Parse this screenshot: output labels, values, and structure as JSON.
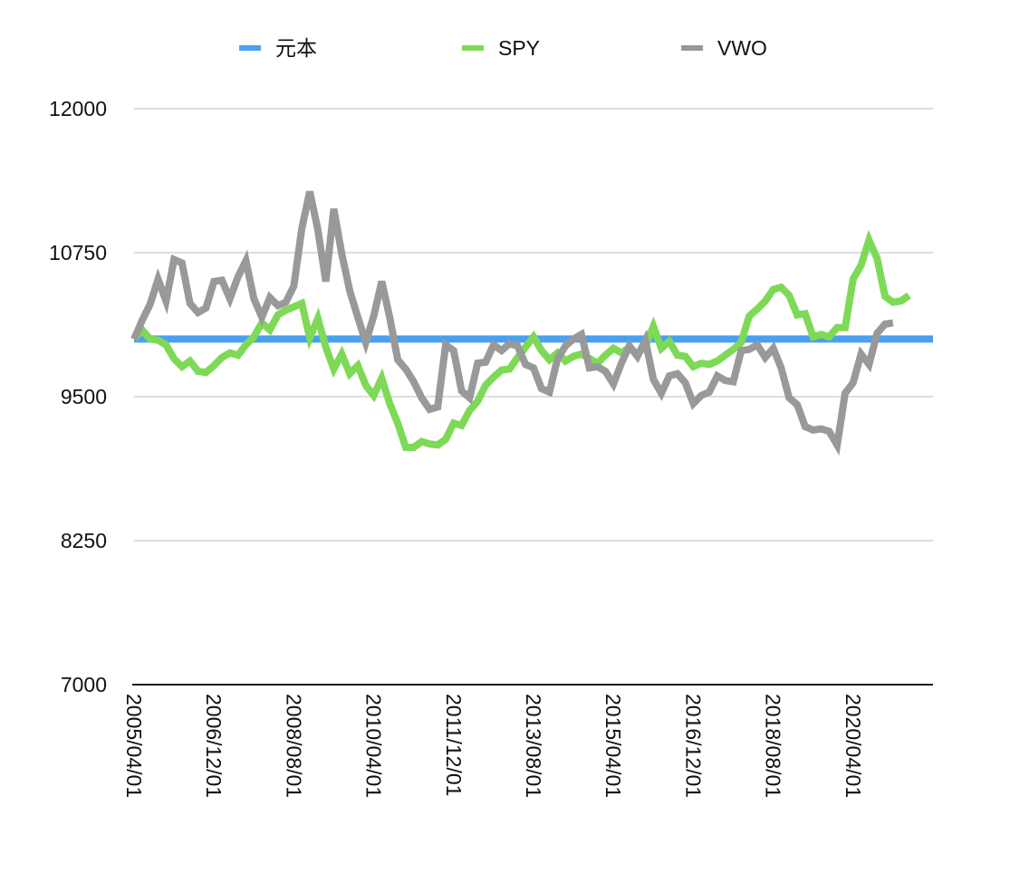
{
  "chart_data": {
    "type": "line",
    "title": "",
    "xlabel": "",
    "ylabel": "",
    "ylim": [
      7000,
      12000
    ],
    "yticks": [
      7000,
      8250,
      9500,
      10750,
      12000
    ],
    "grid": true,
    "legend_position": "top",
    "x_tick_labels": [
      "2005/04/01",
      "2006/12/01",
      "2008/08/01",
      "2010/04/01",
      "2011/12/01",
      "2013/08/01",
      "2015/04/01",
      "2016/12/01",
      "2018/08/01",
      "2020/04/01"
    ],
    "x_months_from": "2005/04",
    "x_months_to": "2021/12",
    "series": [
      {
        "name": "元本",
        "color": "#4aa0f0",
        "points": [
          [
            "2005/04",
            10000
          ],
          [
            "2021/12",
            10000
          ]
        ]
      },
      {
        "name": "SPY",
        "color": "#7ed957",
        "points": [
          [
            "2005/04",
            10000
          ],
          [
            "2005/06",
            10080
          ],
          [
            "2005/08",
            10000
          ],
          [
            "2005/10",
            9990
          ],
          [
            "2005/12",
            9950
          ],
          [
            "2006/02",
            9830
          ],
          [
            "2006/04",
            9760
          ],
          [
            "2006/06",
            9810
          ],
          [
            "2006/08",
            9720
          ],
          [
            "2006/10",
            9710
          ],
          [
            "2006/12",
            9770
          ],
          [
            "2007/02",
            9840
          ],
          [
            "2007/04",
            9880
          ],
          [
            "2007/06",
            9860
          ],
          [
            "2007/08",
            9950
          ],
          [
            "2007/10",
            10020
          ],
          [
            "2007/12",
            10140
          ],
          [
            "2008/02",
            10080
          ],
          [
            "2008/04",
            10210
          ],
          [
            "2008/06",
            10250
          ],
          [
            "2008/08",
            10280
          ],
          [
            "2008/10",
            10310
          ],
          [
            "2008/12",
            10010
          ],
          [
            "2009/02",
            10180
          ],
          [
            "2009/04",
            9930
          ],
          [
            "2009/06",
            9740
          ],
          [
            "2009/08",
            9870
          ],
          [
            "2009/10",
            9700
          ],
          [
            "2009/12",
            9770
          ],
          [
            "2010/02",
            9600
          ],
          [
            "2010/04",
            9510
          ],
          [
            "2010/06",
            9660
          ],
          [
            "2010/08",
            9440
          ],
          [
            "2010/10",
            9270
          ],
          [
            "2010/12",
            9060
          ],
          [
            "2011/02",
            9060
          ],
          [
            "2011/04",
            9110
          ],
          [
            "2011/06",
            9090
          ],
          [
            "2011/08",
            9080
          ],
          [
            "2011/10",
            9130
          ],
          [
            "2011/12",
            9270
          ],
          [
            "2012/02",
            9250
          ],
          [
            "2012/04",
            9380
          ],
          [
            "2012/06",
            9460
          ],
          [
            "2012/08",
            9600
          ],
          [
            "2012/10",
            9670
          ],
          [
            "2012/12",
            9730
          ],
          [
            "2013/02",
            9740
          ],
          [
            "2013/04",
            9840
          ],
          [
            "2013/06",
            9930
          ],
          [
            "2013/08",
            10020
          ],
          [
            "2013/10",
            9900
          ],
          [
            "2013/12",
            9820
          ],
          [
            "2014/02",
            9880
          ],
          [
            "2014/04",
            9810
          ],
          [
            "2014/06",
            9850
          ],
          [
            "2014/08",
            9870
          ],
          [
            "2014/10",
            9830
          ],
          [
            "2014/12",
            9790
          ],
          [
            "2015/02",
            9860
          ],
          [
            "2015/04",
            9920
          ],
          [
            "2015/06",
            9880
          ],
          [
            "2015/08",
            9930
          ],
          [
            "2015/10",
            9870
          ],
          [
            "2015/12",
            9940
          ],
          [
            "2016/02",
            10110
          ],
          [
            "2016/04",
            9920
          ],
          [
            "2016/06",
            9980
          ],
          [
            "2016/08",
            9860
          ],
          [
            "2016/10",
            9850
          ],
          [
            "2016/12",
            9760
          ],
          [
            "2017/02",
            9790
          ],
          [
            "2017/04",
            9780
          ],
          [
            "2017/06",
            9810
          ],
          [
            "2017/08",
            9860
          ],
          [
            "2017/10",
            9910
          ],
          [
            "2017/12",
            9970
          ],
          [
            "2018/02",
            10200
          ],
          [
            "2018/04",
            10260
          ],
          [
            "2018/06",
            10330
          ],
          [
            "2018/08",
            10430
          ],
          [
            "2018/10",
            10450
          ],
          [
            "2018/12",
            10380
          ],
          [
            "2019/02",
            10210
          ],
          [
            "2019/04",
            10220
          ],
          [
            "2019/06",
            10020
          ],
          [
            "2019/08",
            10040
          ],
          [
            "2019/10",
            10020
          ],
          [
            "2019/12",
            10100
          ],
          [
            "2020/02",
            10100
          ],
          [
            "2020/04",
            10520
          ],
          [
            "2020/06",
            10640
          ],
          [
            "2020/08",
            10860
          ],
          [
            "2020/10",
            10700
          ],
          [
            "2020/12",
            10370
          ],
          [
            "2021/02",
            10320
          ],
          [
            "2021/04",
            10330
          ],
          [
            "2021/06",
            10380
          ]
        ]
      },
      {
        "name": "VWO",
        "color": "#999999",
        "points": [
          [
            "2005/04",
            10000
          ],
          [
            "2005/06",
            10160
          ],
          [
            "2005/08",
            10300
          ],
          [
            "2005/10",
            10520
          ],
          [
            "2005/12",
            10330
          ],
          [
            "2006/02",
            10690
          ],
          [
            "2006/04",
            10660
          ],
          [
            "2006/06",
            10310
          ],
          [
            "2006/08",
            10230
          ],
          [
            "2006/10",
            10270
          ],
          [
            "2006/12",
            10500
          ],
          [
            "2007/02",
            10510
          ],
          [
            "2007/04",
            10350
          ],
          [
            "2007/06",
            10540
          ],
          [
            "2007/08",
            10680
          ],
          [
            "2007/10",
            10350
          ],
          [
            "2007/12",
            10190
          ],
          [
            "2008/02",
            10360
          ],
          [
            "2008/04",
            10290
          ],
          [
            "2008/06",
            10320
          ],
          [
            "2008/08",
            10460
          ],
          [
            "2008/10",
            10960
          ],
          [
            "2008/12",
            11280
          ],
          [
            "2009/02",
            10950
          ],
          [
            "2009/04",
            10500
          ],
          [
            "2009/06",
            11130
          ],
          [
            "2009/08",
            10740
          ],
          [
            "2009/10",
            10420
          ],
          [
            "2009/12",
            10190
          ],
          [
            "2010/02",
            9970
          ],
          [
            "2010/04",
            10200
          ],
          [
            "2010/06",
            10500
          ],
          [
            "2010/08",
            10190
          ],
          [
            "2010/10",
            9820
          ],
          [
            "2010/12",
            9740
          ],
          [
            "2011/02",
            9630
          ],
          [
            "2011/04",
            9490
          ],
          [
            "2011/06",
            9390
          ],
          [
            "2011/08",
            9410
          ],
          [
            "2011/10",
            9950
          ],
          [
            "2011/12",
            9900
          ],
          [
            "2012/02",
            9550
          ],
          [
            "2012/04",
            9490
          ],
          [
            "2012/06",
            9790
          ],
          [
            "2012/08",
            9800
          ],
          [
            "2012/10",
            9950
          ],
          [
            "2012/12",
            9900
          ],
          [
            "2013/02",
            9960
          ],
          [
            "2013/04",
            9940
          ],
          [
            "2013/06",
            9780
          ],
          [
            "2013/08",
            9750
          ],
          [
            "2013/10",
            9570
          ],
          [
            "2013/12",
            9540
          ],
          [
            "2014/02",
            9830
          ],
          [
            "2014/04",
            9940
          ],
          [
            "2014/06",
            10000
          ],
          [
            "2014/08",
            10040
          ],
          [
            "2014/10",
            9750
          ],
          [
            "2014/12",
            9760
          ],
          [
            "2015/02",
            9720
          ],
          [
            "2015/04",
            9610
          ],
          [
            "2015/06",
            9790
          ],
          [
            "2015/08",
            9940
          ],
          [
            "2015/10",
            9850
          ],
          [
            "2015/12",
            9990
          ],
          [
            "2016/02",
            9650
          ],
          [
            "2016/04",
            9530
          ],
          [
            "2016/06",
            9680
          ],
          [
            "2016/08",
            9700
          ],
          [
            "2016/10",
            9620
          ],
          [
            "2016/12",
            9440
          ],
          [
            "2017/02",
            9510
          ],
          [
            "2017/04",
            9540
          ],
          [
            "2017/06",
            9680
          ],
          [
            "2017/08",
            9640
          ],
          [
            "2017/10",
            9630
          ],
          [
            "2017/12",
            9900
          ],
          [
            "2018/02",
            9910
          ],
          [
            "2018/04",
            9950
          ],
          [
            "2018/06",
            9840
          ],
          [
            "2018/08",
            9920
          ],
          [
            "2018/10",
            9750
          ],
          [
            "2018/12",
            9490
          ],
          [
            "2019/02",
            9430
          ],
          [
            "2019/04",
            9240
          ],
          [
            "2019/06",
            9210
          ],
          [
            "2019/08",
            9220
          ],
          [
            "2019/10",
            9200
          ],
          [
            "2019/12",
            9080
          ],
          [
            "2020/02",
            9530
          ],
          [
            "2020/04",
            9620
          ],
          [
            "2020/06",
            9870
          ],
          [
            "2020/08",
            9780
          ],
          [
            "2020/10",
            10050
          ],
          [
            "2020/12",
            10130
          ],
          [
            "2021/02",
            10140
          ]
        ]
      }
    ]
  }
}
